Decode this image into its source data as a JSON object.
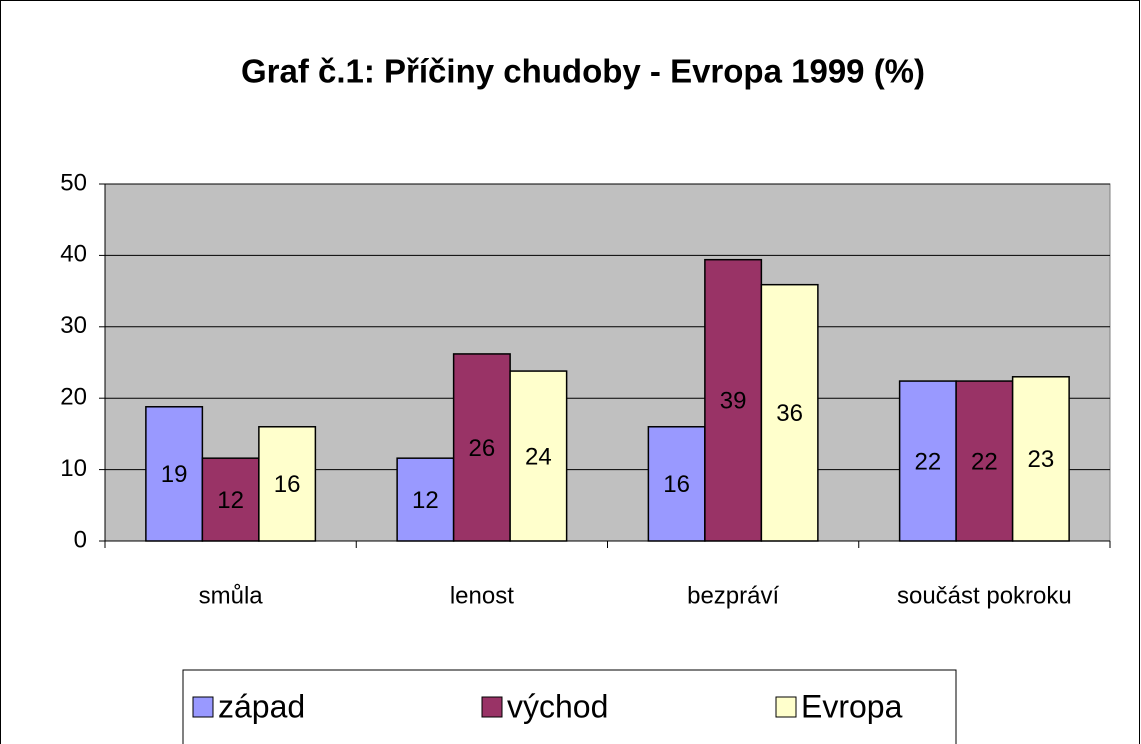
{
  "chart_data": {
    "type": "bar",
    "title": "Graf č.1: Příčiny chudoby - Evropa 1999 (%)",
    "categories": [
      "smůla",
      "lenost",
      "bezpráví",
      "součást pokroku"
    ],
    "series": [
      {
        "name": "západ",
        "color": "#9999ff",
        "values": [
          18.8,
          11.6,
          16.0,
          22.4
        ],
        "value_labels": [
          "19",
          "12",
          "16",
          "22"
        ]
      },
      {
        "name": "východ",
        "color": "#993366",
        "values": [
          11.6,
          26.2,
          39.4,
          22.4
        ],
        "value_labels": [
          "12",
          "26",
          "39",
          "22"
        ]
      },
      {
        "name": "Evropa",
        "color": "#ffffcc",
        "values": [
          16.0,
          23.8,
          35.9,
          23.0
        ],
        "value_labels": [
          "16",
          "24",
          "36",
          "23"
        ]
      }
    ],
    "ylim": [
      0,
      50
    ],
    "yticks": [
      0,
      10,
      20,
      30,
      40,
      50
    ],
    "grid": true,
    "legend": "bottom"
  }
}
